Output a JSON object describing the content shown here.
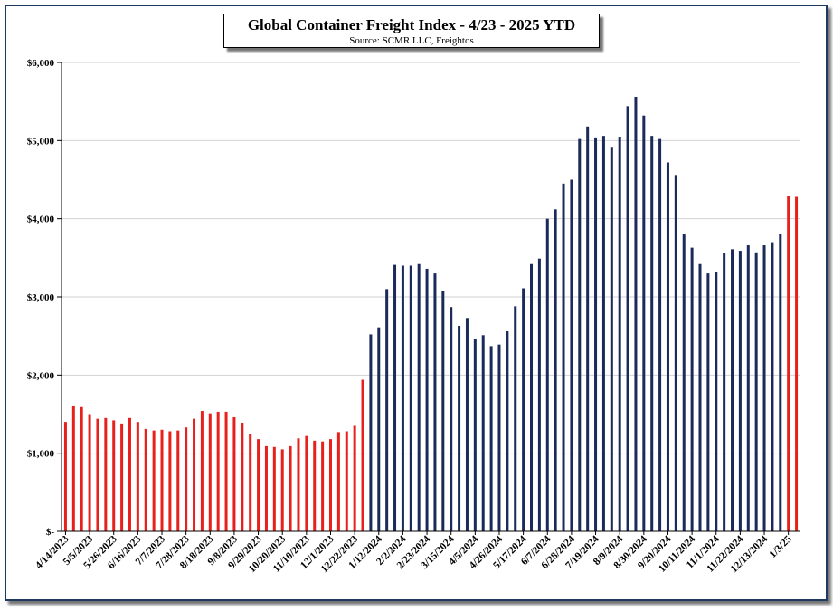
{
  "chart_data": {
    "type": "bar",
    "title": "Global Container Freight Index - 4/23 - 2025 YTD",
    "subtitle": "Source: SCMR LLC, Freightos",
    "xlabel": "",
    "ylabel": "",
    "ylim": [
      0,
      6000
    ],
    "y_ticks": [
      "$-",
      "$1,000",
      "$2,000",
      "$3,000",
      "$4,000",
      "$5,000",
      "$6,000"
    ],
    "grid": "horizontal",
    "legend": "none",
    "x_tick_labels": [
      "4/14/2023",
      "5/5/2023",
      "5/26/2023",
      "6/16/2023",
      "7/7/2023",
      "7/28/2023",
      "8/18/2023",
      "9/8/2023",
      "9/29/2023",
      "10/20/2023",
      "11/10/2023",
      "12/1/2023",
      "12/22/2023",
      "1/12/2024",
      "2/2/2024",
      "2/23/2024",
      "3/15/2024",
      "4/5/2024",
      "4/26/2024",
      "5/17/2024",
      "6/7/2024",
      "6/28/2024",
      "7/19/2024",
      "8/9/2024",
      "8/30/2024",
      "9/20/2024",
      "10/11/2024",
      "11/1/2024",
      "11/22/2024",
      "12/13/2024",
      "1/3/25"
    ],
    "colors": {
      "year_2023": "#e8201c",
      "year_2024": "#1b2a5a",
      "year_2025": "#e8201c"
    },
    "series": [
      {
        "values": [
          1400,
          1610,
          1590,
          1500,
          1440,
          1450,
          1420,
          1380,
          1450,
          1400,
          1310,
          1290,
          1300,
          1280,
          1290,
          1330,
          1440,
          1540,
          1510,
          1530,
          1530,
          1460,
          1390,
          1250,
          1180,
          1090,
          1080,
          1050,
          1090,
          1190,
          1220,
          1160,
          1150,
          1180,
          1270,
          1280,
          1350,
          1940
        ]
      },
      {
        "values": [
          2520,
          2610,
          3100,
          3410,
          3400,
          3400,
          3420,
          3360,
          3300,
          3080,
          2870,
          2630,
          2730,
          2460,
          2510,
          2370,
          2390,
          2560,
          2880,
          3110,
          3420,
          3490,
          4000,
          4120,
          4450,
          4500,
          5020,
          5180,
          5040,
          5060,
          4920,
          5050,
          5440,
          5560,
          5320,
          5060,
          5020,
          4720,
          4560,
          3800,
          3630,
          3420,
          3300,
          3320,
          3560,
          3610,
          3590,
          3660,
          3570,
          3660,
          3700,
          3810
        ]
      },
      {
        "values": [
          4290,
          4280
        ]
      }
    ]
  }
}
